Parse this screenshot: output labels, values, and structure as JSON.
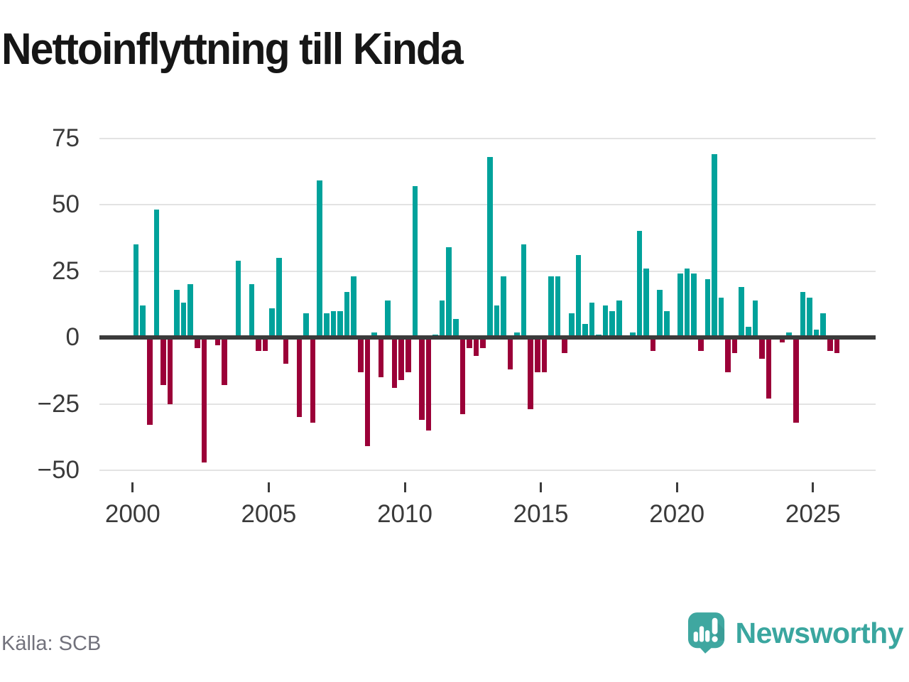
{
  "title": "Nettoinflyttning till Kinda",
  "source": "Källa: SCB",
  "branding": {
    "wordmark": "Newsworthy",
    "logo_icon": "speech-bubble-bar-chart-exclamation"
  },
  "colors": {
    "positive_bar": "#00a29b",
    "negative_bar": "#9b0038",
    "gridline": "#e3e3e3",
    "zero_axis": "#3b3b3b",
    "axis_label": "#3a3a3a",
    "title": "#161616",
    "source_text": "#72727c",
    "brand_teal": "#3aa69f"
  },
  "chart_data": {
    "type": "bar",
    "title": "Nettoinflyttning till Kinda",
    "xlabel": "",
    "ylabel": "",
    "x_unit": "quarter",
    "x_start": "2000 Q1",
    "x_end": "2025 Q4",
    "ylim": [
      -55,
      80
    ],
    "y_ticks": [
      75,
      50,
      25,
      0,
      -25,
      -50
    ],
    "x_tick_labels": [
      "2000",
      "2005",
      "2010",
      "2015",
      "2020",
      "2025"
    ],
    "grid": "horizontal",
    "legend": "none",
    "years": [
      {
        "year": 2000,
        "q": [
          35,
          12,
          -33,
          48
        ]
      },
      {
        "year": 2001,
        "q": [
          -18,
          -25,
          18,
          13
        ]
      },
      {
        "year": 2002,
        "q": [
          20,
          -4,
          -47,
          0
        ]
      },
      {
        "year": 2003,
        "q": [
          -3,
          -18,
          0,
          29
        ]
      },
      {
        "year": 2004,
        "q": [
          0,
          20,
          -5,
          -5
        ]
      },
      {
        "year": 2005,
        "q": [
          11,
          30,
          -10,
          0
        ]
      },
      {
        "year": 2006,
        "q": [
          -30,
          9,
          -32,
          59
        ]
      },
      {
        "year": 2007,
        "q": [
          9,
          10,
          10,
          17
        ]
      },
      {
        "year": 2008,
        "q": [
          23,
          -13,
          -41,
          2
        ]
      },
      {
        "year": 2009,
        "q": [
          -15,
          14,
          -19,
          -16
        ]
      },
      {
        "year": 2010,
        "q": [
          -13,
          57,
          -31,
          -35
        ]
      },
      {
        "year": 2011,
        "q": [
          1,
          14,
          34,
          7
        ]
      },
      {
        "year": 2012,
        "q": [
          -29,
          -4,
          -7,
          -4
        ]
      },
      {
        "year": 2013,
        "q": [
          68,
          12,
          23,
          -12
        ]
      },
      {
        "year": 2014,
        "q": [
          2,
          35,
          -27,
          -13
        ]
      },
      {
        "year": 2015,
        "q": [
          -13,
          23,
          23,
          -6
        ]
      },
      {
        "year": 2016,
        "q": [
          9,
          31,
          5,
          13
        ]
      },
      {
        "year": 2017,
        "q": [
          1,
          12,
          10,
          14
        ]
      },
      {
        "year": 2018,
        "q": [
          0,
          2,
          40,
          26
        ]
      },
      {
        "year": 2019,
        "q": [
          -5,
          18,
          10,
          0
        ]
      },
      {
        "year": 2020,
        "q": [
          24,
          26,
          24,
          -5
        ]
      },
      {
        "year": 2021,
        "q": [
          22,
          69,
          15,
          -13
        ]
      },
      {
        "year": 2022,
        "q": [
          -6,
          19,
          4,
          14
        ]
      },
      {
        "year": 2023,
        "q": [
          -8,
          -23,
          0,
          -2
        ]
      },
      {
        "year": 2024,
        "q": [
          2,
          -32,
          17,
          15
        ]
      },
      {
        "year": 2025,
        "q": [
          3,
          9,
          -5,
          -6
        ]
      }
    ]
  }
}
